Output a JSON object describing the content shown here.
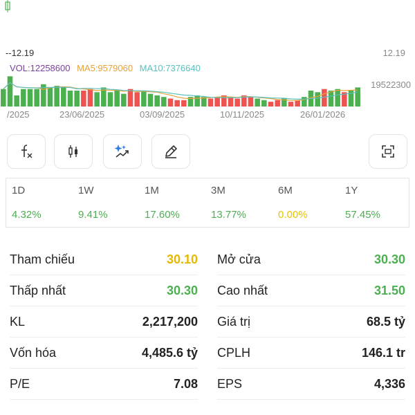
{
  "colors": {
    "up": "#4caf50",
    "down": "#ef5350",
    "ref": "#e6b800",
    "neutral": "#e6c300",
    "vol_label": "#7b3fa0",
    "ma5": "#e6a23c",
    "ma10": "#5bc0be"
  },
  "chart": {
    "price_left": "--12.19",
    "price_right": "12.19",
    "volume_axis_label": "19522300",
    "indicators": {
      "vol": "VOL:12258600",
      "ma5": "MA5:9579060",
      "ma10": "MA10:7376640"
    },
    "dates": [
      "/2025",
      "23/06/2025",
      "03/09/2025",
      "10/11/2025",
      "26/01/2026"
    ]
  },
  "chart_data": {
    "type": "bar",
    "title": "",
    "ylabel": "",
    "volume_max_label": 19522300,
    "bars": [
      {
        "v": 0.55,
        "c": "up"
      },
      {
        "v": 0.95,
        "c": "up"
      },
      {
        "v": 0.35,
        "c": "up"
      },
      {
        "v": 0.55,
        "c": "up"
      },
      {
        "v": 0.55,
        "c": "up"
      },
      {
        "v": 0.55,
        "c": "up"
      },
      {
        "v": 0.7,
        "c": "up"
      },
      {
        "v": 0.6,
        "c": "up"
      },
      {
        "v": 0.65,
        "c": "up"
      },
      {
        "v": 0.6,
        "c": "up"
      },
      {
        "v": 0.5,
        "c": "up"
      },
      {
        "v": 0.5,
        "c": "up"
      },
      {
        "v": 0.5,
        "c": "down"
      },
      {
        "v": 0.55,
        "c": "down"
      },
      {
        "v": 0.45,
        "c": "up"
      },
      {
        "v": 0.6,
        "c": "up"
      },
      {
        "v": 0.45,
        "c": "up"
      },
      {
        "v": 0.5,
        "c": "up"
      },
      {
        "v": 0.4,
        "c": "up"
      },
      {
        "v": 0.55,
        "c": "down"
      },
      {
        "v": 0.45,
        "c": "down"
      },
      {
        "v": 0.5,
        "c": "up"
      },
      {
        "v": 0.4,
        "c": "up"
      },
      {
        "v": 0.35,
        "c": "up"
      },
      {
        "v": 0.3,
        "c": "up"
      },
      {
        "v": 0.25,
        "c": "down"
      },
      {
        "v": 0.2,
        "c": "down"
      },
      {
        "v": 0.2,
        "c": "down"
      },
      {
        "v": 0.3,
        "c": "up"
      },
      {
        "v": 0.35,
        "c": "up"
      },
      {
        "v": 0.3,
        "c": "up"
      },
      {
        "v": 0.25,
        "c": "down"
      },
      {
        "v": 0.3,
        "c": "down"
      },
      {
        "v": 0.35,
        "c": "down"
      },
      {
        "v": 0.3,
        "c": "down"
      },
      {
        "v": 0.25,
        "c": "down"
      },
      {
        "v": 0.35,
        "c": "down"
      },
      {
        "v": 0.3,
        "c": "down"
      },
      {
        "v": 0.25,
        "c": "up"
      },
      {
        "v": 0.2,
        "c": "up"
      },
      {
        "v": 0.15,
        "c": "down"
      },
      {
        "v": 0.2,
        "c": "down"
      },
      {
        "v": 0.25,
        "c": "up"
      },
      {
        "v": 0.15,
        "c": "down"
      },
      {
        "v": 0.2,
        "c": "down"
      },
      {
        "v": 0.3,
        "c": "up"
      },
      {
        "v": 0.5,
        "c": "up"
      },
      {
        "v": 0.45,
        "c": "up"
      },
      {
        "v": 0.55,
        "c": "down"
      },
      {
        "v": 0.5,
        "c": "up"
      },
      {
        "v": 0.55,
        "c": "up"
      },
      {
        "v": 0.45,
        "c": "down"
      },
      {
        "v": 0.5,
        "c": "up"
      },
      {
        "v": 0.6,
        "c": "up"
      }
    ]
  },
  "tools": [
    {
      "name": "fx-indicator-icon"
    },
    {
      "name": "candlestick-icon"
    },
    {
      "name": "ai-sparkle-icon"
    },
    {
      "name": "pencil-draw-icon"
    },
    {
      "name": "screenshot-icon"
    }
  ],
  "periods": [
    {
      "label": "1D",
      "value": "4.32%",
      "color": "up"
    },
    {
      "label": "1W",
      "value": "9.41%",
      "color": "up"
    },
    {
      "label": "1M",
      "value": "17.60%",
      "color": "up"
    },
    {
      "label": "3M",
      "value": "13.77%",
      "color": "up"
    },
    {
      "label": "6M",
      "value": "0.00%",
      "color": "neutral"
    },
    {
      "label": "1Y",
      "value": "57.45%",
      "color": "up"
    }
  ],
  "stats_left": [
    {
      "label": "Tham chiếu",
      "value": "30.10",
      "color": "ref"
    },
    {
      "label": "Thấp nhất",
      "value": "30.30",
      "color": "up"
    },
    {
      "label": "KL",
      "value": "2,217,200",
      "color": "plain"
    },
    {
      "label": "Vốn hóa",
      "value": "4,485.6 tỷ",
      "color": "plain"
    },
    {
      "label": "P/E",
      "value": "7.08",
      "color": "plain"
    }
  ],
  "stats_right": [
    {
      "label": "Mở cửa",
      "value": "30.30",
      "color": "up"
    },
    {
      "label": "Cao nhất",
      "value": "31.50",
      "color": "up"
    },
    {
      "label": "Giá trị",
      "value": "68.5 tỷ",
      "color": "plain"
    },
    {
      "label": "CPLH",
      "value": "146.1 tr",
      "color": "plain"
    },
    {
      "label": "EPS",
      "value": "4,336",
      "color": "plain"
    }
  ]
}
